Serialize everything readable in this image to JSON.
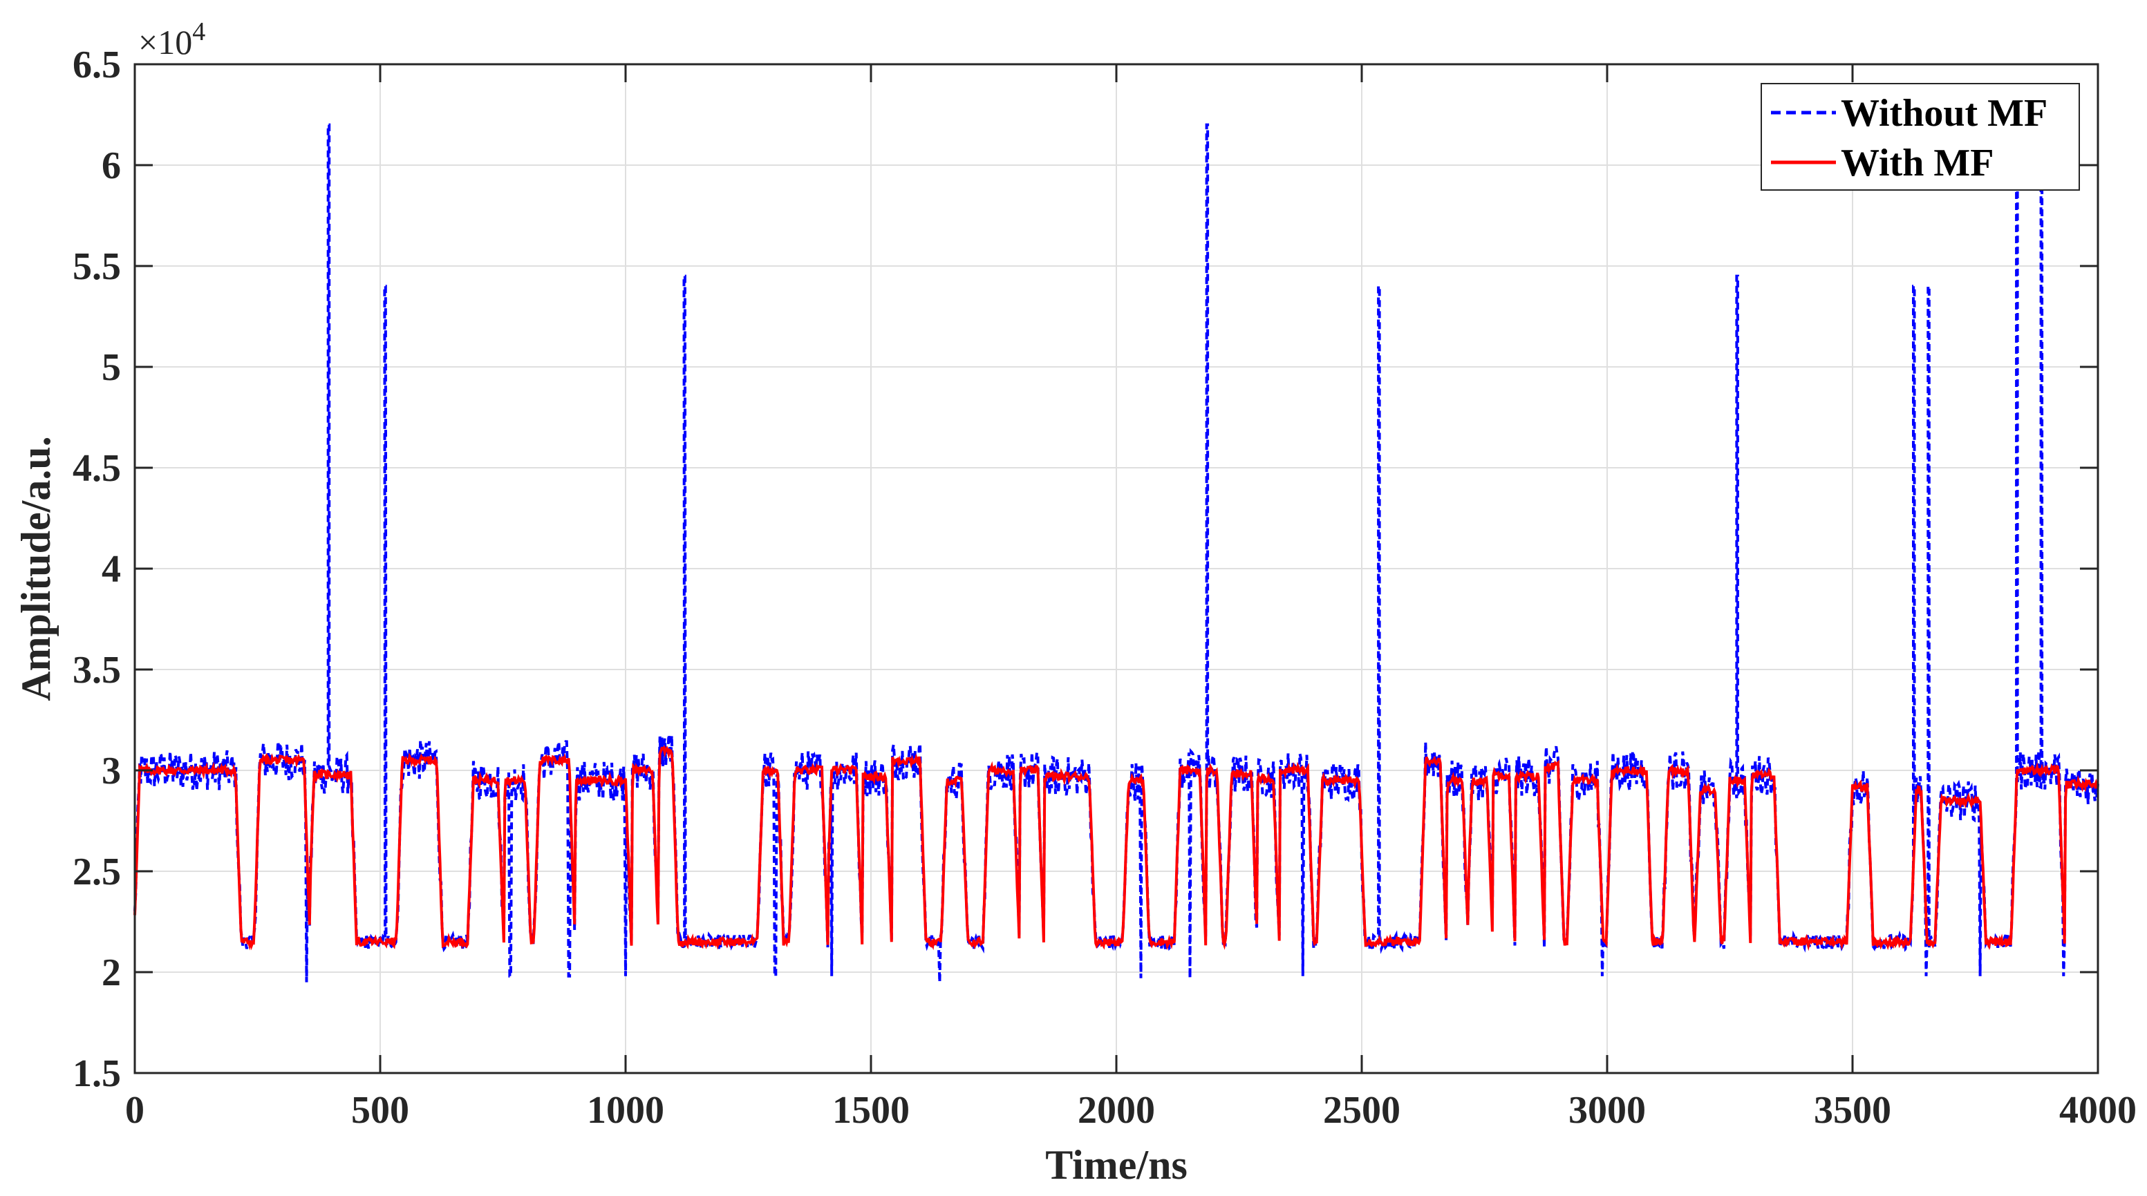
{
  "chart_data": {
    "type": "line",
    "title": "",
    "xlabel": "Time/ns",
    "ylabel": "Amplitude/a.u.",
    "xlim": [
      0,
      4000
    ],
    "ylim": [
      15000,
      65000
    ],
    "y_exponent_label": "×10",
    "y_exponent_power": "4",
    "x_ticks": [
      0,
      500,
      1000,
      1500,
      2000,
      2500,
      3000,
      3500,
      4000
    ],
    "x_tick_labels": [
      "0",
      "500",
      "1000",
      "1500",
      "2000",
      "2500",
      "3000",
      "3500",
      "4000"
    ],
    "y_ticks": [
      15000,
      20000,
      25000,
      30000,
      35000,
      40000,
      45000,
      50000,
      55000,
      60000,
      65000
    ],
    "y_tick_labels": [
      "1.5",
      "2",
      "2.5",
      "3",
      "3.5",
      "4",
      "4.5",
      "5",
      "5.5",
      "6",
      "6.5"
    ],
    "grid": true,
    "legend_position": "top-right",
    "baseline": 21500,
    "pulse_top": 30000,
    "pulses": [
      [
        10,
        205,
        30000
      ],
      [
        255,
        345,
        30500
      ],
      [
        365,
        440,
        29800
      ],
      [
        545,
        615,
        30500
      ],
      [
        690,
        740,
        29500
      ],
      [
        755,
        795,
        29500
      ],
      [
        825,
        885,
        30500
      ],
      [
        900,
        1000,
        29500
      ],
      [
        1015,
        1055,
        30000
      ],
      [
        1070,
        1095,
        31000
      ],
      [
        1280,
        1310,
        30000
      ],
      [
        1345,
        1400,
        30000
      ],
      [
        1420,
        1470,
        30000
      ],
      [
        1475,
        1530,
        29700
      ],
      [
        1530,
        1600,
        30500
      ],
      [
        1655,
        1685,
        29500
      ],
      [
        1740,
        1790,
        30000
      ],
      [
        1805,
        1840,
        30000
      ],
      [
        1850,
        1945,
        29700
      ],
      [
        2025,
        2055,
        29500
      ],
      [
        2130,
        2170,
        30000
      ],
      [
        2185,
        2205,
        30000
      ],
      [
        2235,
        2275,
        29800
      ],
      [
        2280,
        2320,
        29600
      ],
      [
        2320,
        2390,
        30000
      ],
      [
        2420,
        2495,
        29500
      ],
      [
        2630,
        2660,
        30500
      ],
      [
        2675,
        2705,
        29500
      ],
      [
        2725,
        2755,
        29500
      ],
      [
        2760,
        2800,
        29800
      ],
      [
        2810,
        2860,
        29700
      ],
      [
        2870,
        2900,
        30200
      ],
      [
        2930,
        2980,
        29500
      ],
      [
        3010,
        3080,
        30000
      ],
      [
        3125,
        3165,
        30000
      ],
      [
        3190,
        3220,
        29000
      ],
      [
        3250,
        3280,
        29500
      ],
      [
        3295,
        3340,
        29800
      ],
      [
        3500,
        3530,
        29200
      ],
      [
        3630,
        3640,
        29000
      ],
      [
        3680,
        3760,
        28500
      ],
      [
        3835,
        3920,
        30000
      ],
      [
        3935,
        4000,
        29300
      ]
    ],
    "spikes": [
      [
        395,
        62000
      ],
      [
        510,
        54000
      ],
      [
        1120,
        54500
      ],
      [
        2185,
        62000
      ],
      [
        2535,
        54000
      ],
      [
        3265,
        54500
      ],
      [
        3625,
        54000
      ],
      [
        3655,
        54000
      ],
      [
        3835,
        61500
      ],
      [
        3885,
        61500
      ]
    ],
    "dips": [
      [
        350,
        19500
      ],
      [
        765,
        19800
      ],
      [
        885,
        19800
      ],
      [
        1000,
        19800
      ],
      [
        1305,
        19800
      ],
      [
        1420,
        19800
      ],
      [
        1640,
        19500
      ],
      [
        2050,
        19700
      ],
      [
        2150,
        19700
      ],
      [
        2380,
        19800
      ],
      [
        2990,
        19800
      ],
      [
        3650,
        19800
      ],
      [
        3760,
        19800
      ],
      [
        3930,
        19800
      ]
    ],
    "series": [
      {
        "name": "Without MF",
        "color": "#0000ff",
        "style": "dashed",
        "noise_amplitude": 1000
      },
      {
        "name": "With MF",
        "color": "#ff0000",
        "style": "solid",
        "noise_amplitude": 200
      }
    ]
  }
}
